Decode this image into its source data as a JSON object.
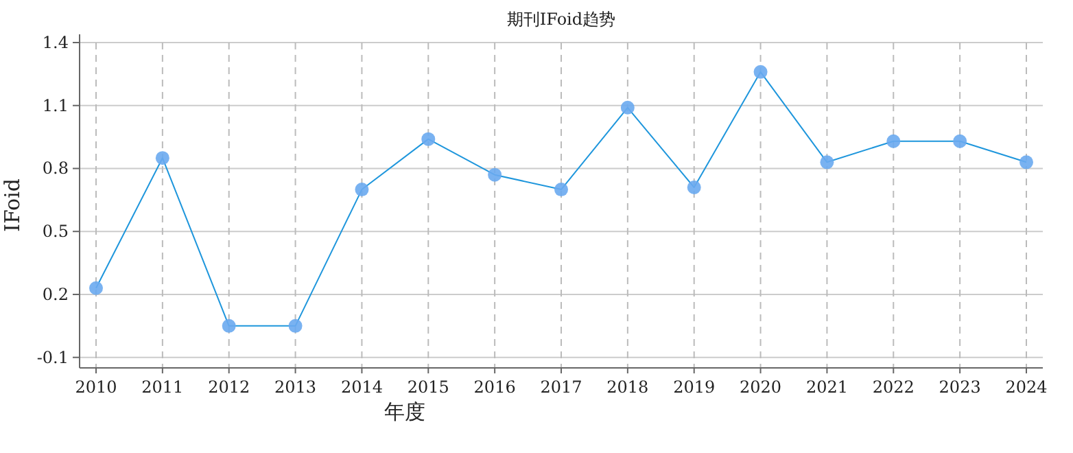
{
  "chart_data": {
    "type": "line",
    "title": "期刊IFoid趋势",
    "xlabel": "年度",
    "ylabel": "IFoid",
    "categories": [
      "2010",
      "2011",
      "2012",
      "2013",
      "2014",
      "2015",
      "2016",
      "2017",
      "2018",
      "2019",
      "2020",
      "2021",
      "2022",
      "2023",
      "2024"
    ],
    "series": [
      {
        "color": "#1e96dc",
        "values": [
          0.23,
          0.85,
          0.05,
          0.05,
          0.7,
          0.94,
          0.77,
          0.7,
          1.09,
          0.71,
          1.26,
          0.83,
          0.93,
          0.93,
          0.83
        ]
      }
    ],
    "ylim": [
      -0.15,
      1.4
    ],
    "yticks": [
      -0.1,
      0.2,
      0.5,
      0.8,
      1.1,
      1.4
    ],
    "grid": true,
    "marker": "circle",
    "line_style": "solid"
  }
}
